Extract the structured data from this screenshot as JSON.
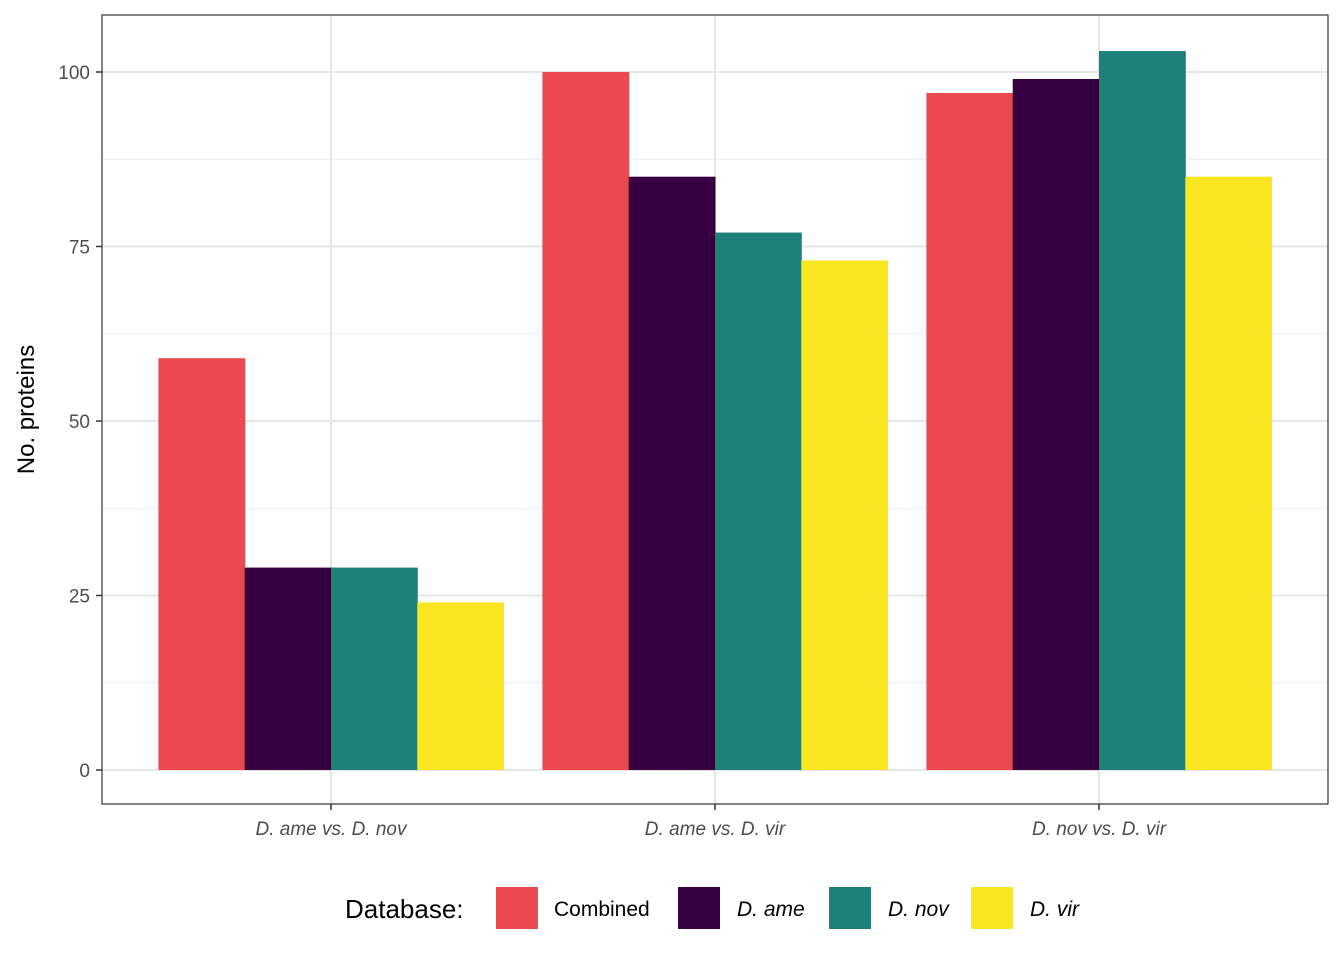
{
  "chart_data": {
    "type": "bar",
    "title": "",
    "xlabel": "",
    "ylabel": "No. proteins",
    "ylim": [
      -7.5,
      108
    ],
    "yticks": [
      0,
      25,
      50,
      75,
      100
    ],
    "grid": true,
    "categories": [
      "D. ame vs. D. nov",
      "D. ame vs. D. vir",
      "D. nov vs. D. vir"
    ],
    "series": [
      {
        "name": "Combined",
        "italic": false,
        "color": "#EA4A4E",
        "values": [
          59,
          100,
          97
        ]
      },
      {
        "name": "D. ame",
        "italic": true,
        "color": "#370043",
        "values": [
          29,
          85,
          99
        ]
      },
      {
        "name": "D. nov",
        "italic": true,
        "color": "#1F7F7A",
        "values": [
          29,
          77,
          103
        ]
      },
      {
        "name": "D. vir",
        "italic": true,
        "color": "#FBE420",
        "values": [
          24,
          73,
          85
        ]
      }
    ],
    "legend": {
      "title": "Database:",
      "position": "bottom"
    }
  }
}
